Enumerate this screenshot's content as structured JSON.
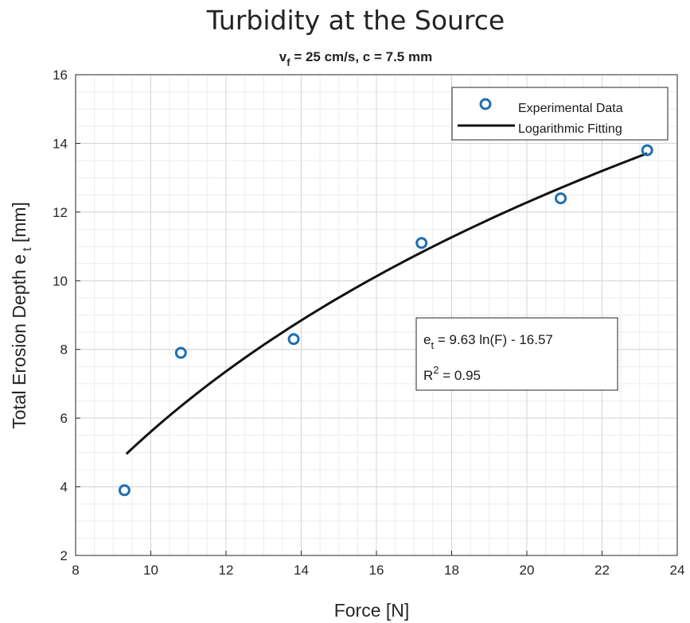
{
  "chart_data": {
    "type": "scatter",
    "title": "Turbidity at the Source",
    "subtitle": {
      "v": "v",
      "v_sub": "f",
      "rest": " = 25 cm/s, c = 7.5 mm"
    },
    "xlabel": "Force [N]",
    "ylabel": {
      "main": "Total Erosion Depth e",
      "sub": "t",
      "unit": " [mm]"
    },
    "xlim": [
      8,
      24
    ],
    "ylim": [
      2,
      16
    ],
    "xticks": [
      8,
      10,
      12,
      14,
      16,
      18,
      20,
      22,
      24
    ],
    "yticks": [
      2,
      4,
      6,
      8,
      10,
      12,
      14,
      16
    ],
    "grid": true,
    "minor_grid": true,
    "legend_position": "top-right",
    "series": [
      {
        "name": "Experimental Data",
        "kind": "scatter",
        "marker": "circle",
        "color": "#1f6fb2",
        "x": [
          9.3,
          10.8,
          13.8,
          17.2,
          20.9,
          23.2
        ],
        "y": [
          3.9,
          7.9,
          8.3,
          11.1,
          12.4,
          13.8
        ]
      },
      {
        "name": "Logarithmic Fitting",
        "kind": "line",
        "color": "#111111",
        "fit": {
          "a": 9.63,
          "b": -16.57,
          "x_start": 9.35,
          "x_end": 23.2
        }
      }
    ],
    "annotation": {
      "eq_main": "e",
      "eq_sub": "t",
      "eq_rest": " = 9.63 ln(F) - 16.57",
      "r2_main": "R",
      "r2_sup": "2",
      "r2_rest": " = 0.95"
    }
  }
}
